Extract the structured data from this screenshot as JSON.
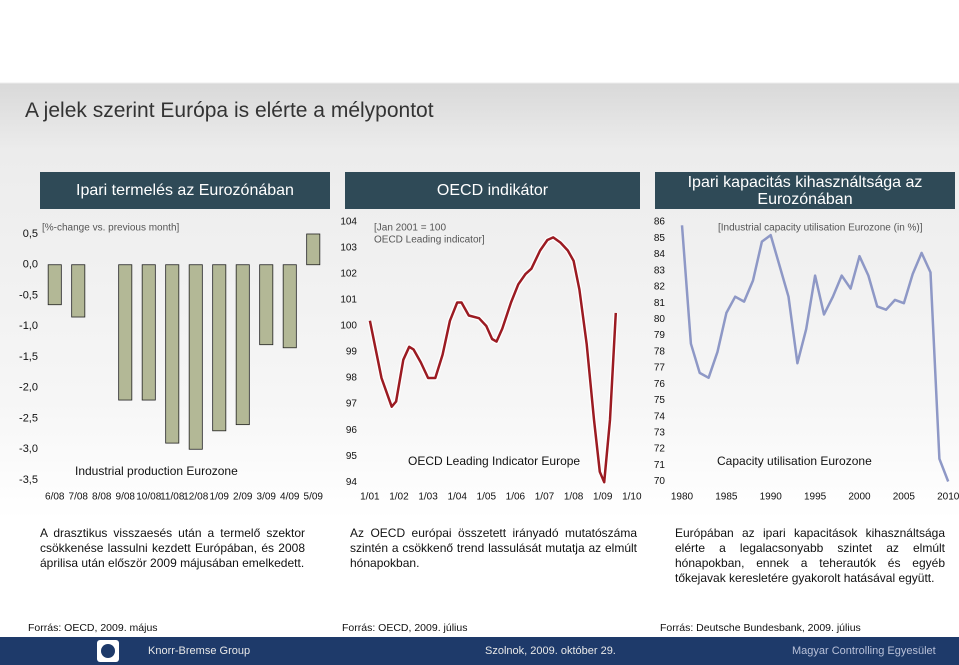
{
  "title": "A jelek szerint Európa is elérte a mélypontot",
  "chart_data": [
    {
      "type": "bar",
      "title": "Ipari termelés az Eurozónában",
      "subtitle": [
        "[%-change vs. previous month]"
      ],
      "categories": [
        "6/08",
        "7/08",
        "8/08",
        "9/08",
        "10/08",
        "11/08",
        "12/08",
        "1/09",
        "2/09",
        "3/09",
        "4/09",
        "5/09"
      ],
      "series": [
        {
          "name": "Industrial production Eurozone",
          "color": "#b3b896",
          "values": [
            -0.65,
            -0.85,
            0,
            -2.2,
            -2.2,
            -2.9,
            -3.0,
            -2.7,
            -2.6,
            -1.3,
            -1.35,
            0.5
          ]
        }
      ],
      "ylim": [
        -3.63,
        0.76
      ],
      "yticks": [
        {
          "value": 0.5,
          "label": "0,5"
        },
        {
          "value": 0,
          "label": "0,0"
        },
        {
          "value": -0.5,
          "label": "-0,5"
        },
        {
          "value": -1,
          "label": "-1,0"
        },
        {
          "value": -1.5,
          "label": "-1,5"
        },
        {
          "value": -2,
          "label": "-2,0"
        },
        {
          "value": -2.5,
          "label": "-2,5"
        },
        {
          "value": -3,
          "label": "-3,0"
        },
        {
          "value": -3.5,
          "label": "-3,5"
        }
      ]
    },
    {
      "type": "line",
      "title": "OECD indikátor",
      "subtitle": [
        "[Jan 2001 = 100",
        "OECD Leading indicator]"
      ],
      "x": [
        2001.0,
        2001.4,
        2001.75,
        2001.9,
        2002.15,
        2002.35,
        2002.5,
        2002.75,
        2003.0,
        2003.25,
        2003.5,
        2003.75,
        2004.0,
        2004.15,
        2004.4,
        2004.75,
        2005.0,
        2005.2,
        2005.35,
        2005.55,
        2005.85,
        2006.1,
        2006.35,
        2006.55,
        2006.85,
        2007.1,
        2007.3,
        2007.55,
        2007.8,
        2008.0,
        2008.2,
        2008.45,
        2008.7,
        2008.9,
        2009.05,
        2009.25,
        2009.45
      ],
      "series": [
        {
          "name": "OECD Leading Indicator Europe",
          "color": "#9b1b22",
          "values": [
            100.2,
            98.0,
            96.9,
            97.1,
            98.7,
            99.2,
            99.1,
            98.6,
            98.0,
            98.0,
            98.9,
            100.2,
            100.9,
            100.9,
            100.4,
            100.3,
            100.0,
            99.5,
            99.4,
            99.9,
            100.9,
            101.6,
            102.0,
            102.2,
            102.9,
            103.3,
            103.4,
            103.2,
            102.9,
            102.5,
            101.4,
            99.3,
            96.4,
            94.4,
            94.0,
            96.4,
            100.5
          ]
        }
      ],
      "xlim": [
        2000.73,
        2010.35
      ],
      "ylim": [
        93.7,
        104.3
      ],
      "xticks": [
        {
          "value": 2001,
          "label": "1/01"
        },
        {
          "value": 2002,
          "label": "1/02"
        },
        {
          "value": 2003,
          "label": "1/03"
        },
        {
          "value": 2004,
          "label": "1/04"
        },
        {
          "value": 2005,
          "label": "1/05"
        },
        {
          "value": 2006,
          "label": "1/06"
        },
        {
          "value": 2007,
          "label": "1/07"
        },
        {
          "value": 2008,
          "label": "1/08"
        },
        {
          "value": 2009,
          "label": "1/09"
        },
        {
          "value": 2010,
          "label": "1/10"
        }
      ],
      "yticks": [
        94,
        95,
        96,
        97,
        98,
        99,
        100,
        101,
        102,
        103,
        104
      ]
    },
    {
      "type": "line",
      "title": "Ipari kapacitás kihasználtsága az Eurozónában",
      "subtitle": [
        "[Industrial capacity utilisation Eurozone (in %)]"
      ],
      "x": [
        1980,
        1981,
        1982,
        1983,
        1984,
        1985,
        1986,
        1987,
        1988,
        1989,
        1990,
        1991,
        1992,
        1993,
        1994,
        1995,
        1996,
        1997,
        1998,
        1999,
        2000,
        2001,
        2002,
        2003,
        2004,
        2005,
        2006,
        2007,
        2008,
        2009,
        2010
      ],
      "series": [
        {
          "name": "Capacity utilisation Eurozone",
          "color": "#8e98c6",
          "values": [
            85.8,
            78.5,
            76.7,
            76.4,
            78.0,
            80.4,
            81.4,
            81.1,
            82.4,
            84.8,
            85.2,
            83.3,
            81.4,
            77.3,
            79.4,
            82.7,
            80.3,
            81.4,
            82.7,
            81.9,
            83.9,
            82.7,
            80.8,
            80.6,
            81.2,
            81.0,
            82.8,
            84.1,
            82.9,
            71.4,
            70.0
          ]
        }
      ],
      "xlim": [
        1978.65,
        2011.1
      ],
      "ylim": [
        69.6,
        86.5
      ],
      "xticks": [
        1980,
        1985,
        1990,
        1995,
        2000,
        2005,
        2010
      ],
      "yticks": [
        70,
        71,
        72,
        73,
        74,
        75,
        76,
        77,
        78,
        79,
        80,
        81,
        82,
        83,
        84,
        85,
        86
      ]
    }
  ],
  "notes": [
    "A drasztikus visszaesés után a termelő szektor csökkenése lassulni kezdett Európában, és 2008 áprilisa után először 2009 májusában emelkedett.",
    "Az OECD európai összetett irányadó mutatószáma szintén a csökkenő trend lassulását mutatja az elmúlt hónapokban.",
    "Európában az ipari kapacitások kihasználtsága elérte a legalacsonyabb szintet az elmúlt hónapokban, ennek a teherautók és egyéb tőkejavak keresletére gyakorolt hatásával együtt."
  ],
  "sources": [
    "Forrás: OECD, 2009. május",
    "Forrás: OECD, 2009. július",
    "Forrás: Deutsche Bundesbank, 2009. július"
  ],
  "footer": {
    "company": "Knorr-Bremse Group",
    "place_date": "Szolnok, 2009. október 29.",
    "organization": "Magyar Controlling Egyesület"
  }
}
